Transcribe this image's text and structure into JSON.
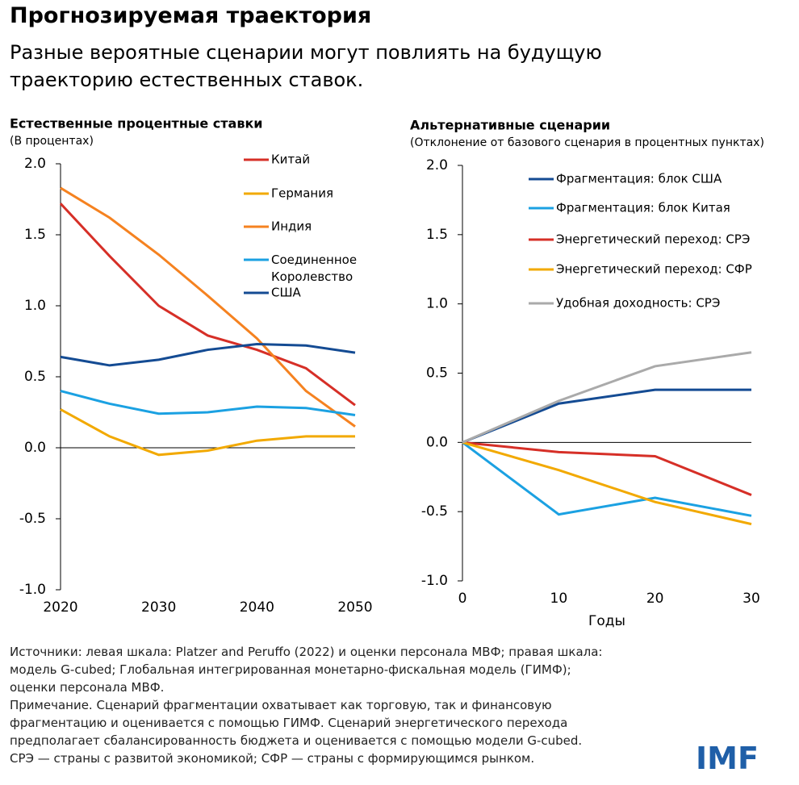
{
  "header": {
    "title": "Прогнозируемая траектория",
    "subtitle": "Разные вероятные сценарии могут повлиять на будущую траекторию естественных ставок."
  },
  "chart_data": [
    {
      "type": "line",
      "title": "Естественные процентные ставки",
      "subtitle": "(В процентах)",
      "x": [
        2020,
        2025,
        2030,
        2035,
        2040,
        2045,
        2050
      ],
      "xlim": [
        2020,
        2050
      ],
      "xticks": [
        2020,
        2030,
        2040,
        2050
      ],
      "ylim": [
        -1,
        2
      ],
      "yticks": [
        {
          "value": 2,
          "label": "2.0"
        },
        1.5,
        {
          "value": 1,
          "label": "1.0"
        },
        0.5,
        {
          "value": 0,
          "label": "0.0"
        },
        -0.5,
        {
          "value": -1,
          "label": "-1.0"
        }
      ],
      "series": [
        {
          "name": "Китай",
          "color": "#d62f27",
          "values": [
            1.72,
            1.35,
            1.0,
            0.79,
            0.69,
            0.56,
            0.3
          ]
        },
        {
          "name": "Германия",
          "color": "#f2a900",
          "values": [
            0.27,
            0.08,
            -0.05,
            -0.02,
            0.05,
            0.08,
            0.08
          ]
        },
        {
          "name": "Индия",
          "color": "#f58220",
          "values": [
            1.83,
            1.62,
            1.36,
            1.07,
            0.77,
            0.4,
            0.15
          ]
        },
        {
          "name": "Соединенное Королевство",
          "color": "#1ba1e2",
          "values": [
            0.4,
            0.31,
            0.24,
            0.25,
            0.29,
            0.28,
            0.23
          ]
        },
        {
          "name": "США",
          "color": "#144b93",
          "values": [
            0.64,
            0.58,
            0.62,
            0.69,
            0.73,
            0.72,
            0.67
          ]
        }
      ]
    },
    {
      "type": "line",
      "title": "Альтернативные сценарии",
      "subtitle": "(Отклонение от базового сценария в процентных пунктах)",
      "x_label": "Годы",
      "x": [
        0,
        10,
        20,
        30
      ],
      "xlim": [
        0,
        30
      ],
      "xticks": [
        0,
        10,
        20,
        30
      ],
      "ylim": [
        -1,
        2
      ],
      "yticks": [
        {
          "value": 2,
          "label": "2.0"
        },
        1.5,
        {
          "value": 1,
          "label": "1.0"
        },
        0.5,
        {
          "value": 0,
          "label": "0.0"
        },
        -0.5,
        {
          "value": -1,
          "label": "-1.0"
        }
      ],
      "series": [
        {
          "name": "Фрагментация: блок США",
          "color": "#144b93",
          "values": [
            0,
            0.28,
            0.38,
            0.38
          ]
        },
        {
          "name": "Фрагментация: блок Китая",
          "color": "#1ba1e2",
          "values": [
            0,
            -0.52,
            -0.4,
            -0.53
          ]
        },
        {
          "name": "Энергетический переход: СРЭ",
          "color": "#d62f27",
          "values": [
            0,
            -0.07,
            -0.1,
            -0.38
          ]
        },
        {
          "name": "Энергетический переход: СФР",
          "color": "#f2a900",
          "values": [
            0,
            -0.2,
            -0.43,
            -0.59
          ]
        },
        {
          "name": "Удобная доходность: СРЭ",
          "color": "#aaaaaa",
          "values": [
            0,
            0.3,
            0.55,
            0.65
          ]
        }
      ]
    }
  ],
  "footer": {
    "lines": [
      "Источники: левая шкала: Platzer and Peruffo (2022) и оценки персонала МВФ; правая шкала:",
      "модель G-cubed; Глобальная интегрированная монетарно-фискальная модель (ГИМФ);",
      "оценки персонала МВФ.",
      "Примечание. Сценарий фрагментации охватывает как торговую, так и финансовую",
      "фрагментацию и оценивается с помощью ГИМФ. Сценарий энергетического перехода",
      "предполагает сбалансированность бюджета и оценивается с помощью модели G-cubed.",
      "СРЭ — страны с развитой экономикой; СФР — страны с формирующимся рынком."
    ]
  },
  "logo": "IMF"
}
